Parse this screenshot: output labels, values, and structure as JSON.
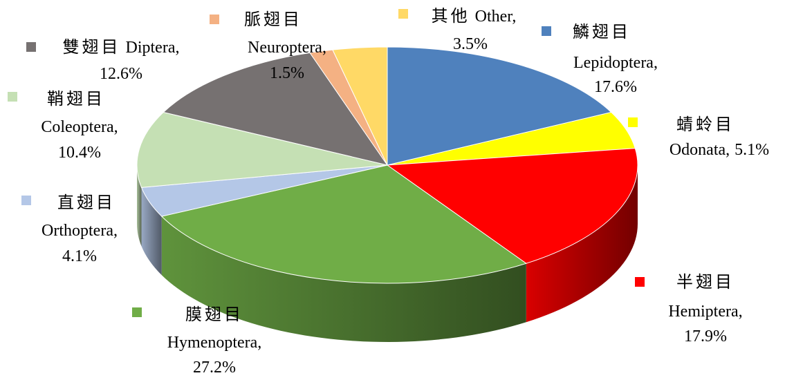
{
  "chart_data": {
    "type": "pie3d",
    "categories": [
      {
        "zh": "鱗翅目",
        "en": "Lepidoptera,"
      },
      {
        "zh": "蜻蛉目",
        "en": "Odonata,"
      },
      {
        "zh": "半翅目",
        "en": "Hemiptera,"
      },
      {
        "zh": "膜翅目",
        "en": "Hymenoptera,"
      },
      {
        "zh": "直翅目",
        "en": "Orthoptera,"
      },
      {
        "zh": "鞘翅目",
        "en": "Coleoptera,"
      },
      {
        "zh": "雙翅目",
        "en": "Diptera,"
      },
      {
        "zh": "脈翅目",
        "en": "Neuroptera,"
      },
      {
        "zh": "其他",
        "en": "Other,"
      }
    ],
    "values": [
      17.6,
      5.1,
      17.9,
      27.2,
      4.1,
      10.4,
      12.6,
      1.5,
      3.5
    ],
    "value_labels": [
      "17.6%",
      "5.1%",
      "17.9%",
      "27.2%",
      "4.1%",
      "10.4%",
      "12.6%",
      "1.5%",
      "3.5%"
    ],
    "colors": [
      "#4f81bd",
      "#ffff00",
      "#ff0000",
      "#70ad47",
      "#b4c7e7",
      "#c5e0b4",
      "#767171",
      "#f4b183",
      "#ffd966"
    ]
  }
}
